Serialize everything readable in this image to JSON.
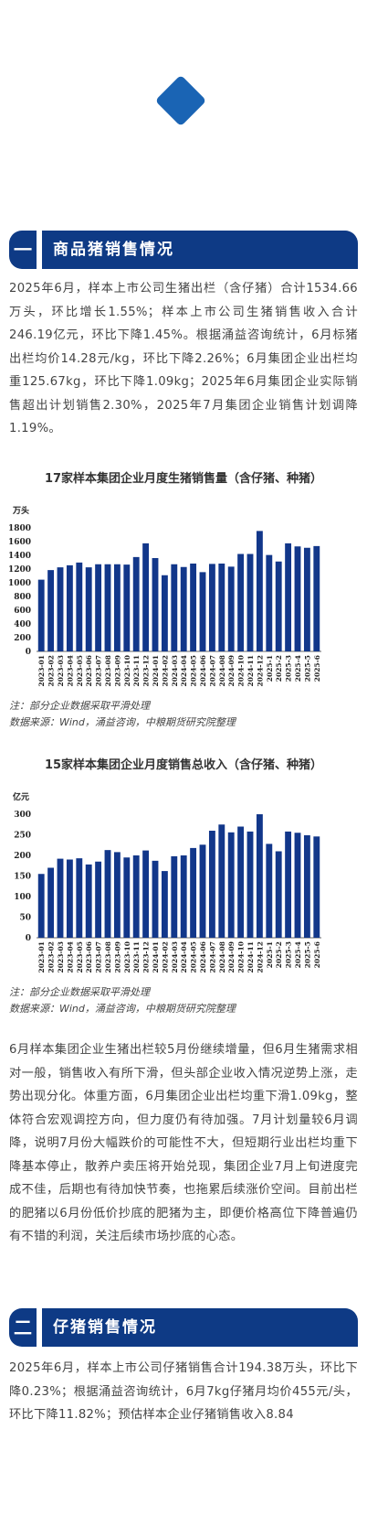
{
  "section1": {
    "number": "一",
    "title": "商品猪销售情况",
    "paragraph": "2025年6月，样本上市公司生猪出栏（含仔猪）合计1534.66万头，环比增长1.55%；样本上市公司生猪销售收入合计246.19亿元，环比下降1.45%。根据涌益咨询统计，6月标猪出栏均价14.28元/kg，环比下降2.26%；6月集团企业出栏均重125.67kg，环比下降1.09kg；2025年6月集团企业实际销售超出计划销售2.30%，2025年7月集团企业销售计划调降1.19%。"
  },
  "chart1": {
    "title": "17家样本集团企业月度生猪销售量（含仔猪、种猪）",
    "note1": "注：部分企业数据采取平滑处理",
    "note2": "数据来源：Wind，涌益咨询，中粮期货研究院整理"
  },
  "chart2": {
    "title": "15家样本集团企业月度销售总收入（含仔猪、种猪）",
    "note1": "注：部分企业数据采取平滑处理",
    "note2": "数据来源：Wind，涌益咨询，中粮期货研究院整理"
  },
  "paragraph2": "6月样本集团企业生猪出栏较5月份继续增量，但6月生猪需求相对一般，销售收入有所下滑，但头部企业收入情况逆势上涨，走势出现分化。体重方面，6月集团企业出栏均重下滑1.09kg，整体符合宏观调控方向，但力度仍有待加强。7月计划量较6月调降，说明7月份大幅跌价的可能性不大，但短期行业出栏均重下降基本停止，散养户卖压将开始兑现，集团企业7月上旬进度完成不佳，后期也有待加快节奏，也拖累后续涨价空间。目前出栏的肥猪以6月份低价抄底的肥猪为主，即便价格高位下降普遍仍有不错的利润，关注后续市场抄底的心态。",
  "section2": {
    "number": "二",
    "title": "仔猪销售情况",
    "paragraph": "2025年6月，样本上市公司仔猪销售合计194.38万头，环比下降0.23%；根据涌益咨询统计，6月7kg仔猪月均价455元/头，环比下降11.82%；预估样本企业仔猪销售收入8.84"
  },
  "chart_data": [
    {
      "type": "bar",
      "title": "17家样本集团企业月度生猪销售量（含仔猪、种猪）",
      "ylabel": "万头",
      "ylim": [
        0,
        1800
      ],
      "yticks": [
        0,
        200,
        400,
        600,
        800,
        1000,
        1200,
        1400,
        1600,
        1800
      ],
      "color": "#12378a",
      "categories": [
        "2023-01",
        "2023-02",
        "2023-03",
        "2023-04",
        "2023-05",
        "2023-06",
        "2023-07",
        "2023-08",
        "2023-09",
        "2023-10",
        "2023-11",
        "2023-12",
        "2024-01",
        "2024-02",
        "2024-03",
        "2024-04",
        "2024-05",
        "2024-06",
        "2024-07",
        "2024-08",
        "2024-09",
        "2024-10",
        "2024-11",
        "2024-12",
        "2025-1",
        "2025-2",
        "2025-3",
        "2025-4",
        "2025-5",
        "2025-6"
      ],
      "values": [
        1045,
        1185,
        1225,
        1255,
        1295,
        1225,
        1270,
        1270,
        1270,
        1265,
        1375,
        1575,
        1360,
        1110,
        1270,
        1230,
        1280,
        1155,
        1275,
        1280,
        1235,
        1420,
        1420,
        1755,
        1405,
        1310,
        1575,
        1530,
        1510,
        1535
      ]
    },
    {
      "type": "bar",
      "title": "15家样本集团企业月度销售总收入（含仔猪、种猪）",
      "ylabel": "亿元",
      "ylim": [
        0,
        300
      ],
      "yticks": [
        0,
        50,
        100,
        150,
        200,
        250,
        300
      ],
      "color": "#12378a",
      "categories": [
        "2023-01",
        "2023-02",
        "2023-03",
        "2023-04",
        "2023-05",
        "2023-06",
        "2023-07",
        "2023-08",
        "2023-09",
        "2023-10",
        "2023-11",
        "2023-12",
        "2024-01",
        "2024-02",
        "2024-03",
        "2024-04",
        "2024-05",
        "2024-06",
        "2024-07",
        "2024-08",
        "2024-09",
        "2024-10",
        "2024-11",
        "2024-12",
        "2025-1",
        "2025-2",
        "2025-3",
        "2025-4",
        "2025-5",
        "2025-6"
      ],
      "values": [
        155,
        170,
        192,
        190,
        193,
        178,
        185,
        213,
        208,
        195,
        200,
        212,
        187,
        162,
        198,
        200,
        218,
        226,
        260,
        275,
        256,
        270,
        258,
        300,
        228,
        210,
        258,
        255,
        249,
        246
      ]
    }
  ]
}
